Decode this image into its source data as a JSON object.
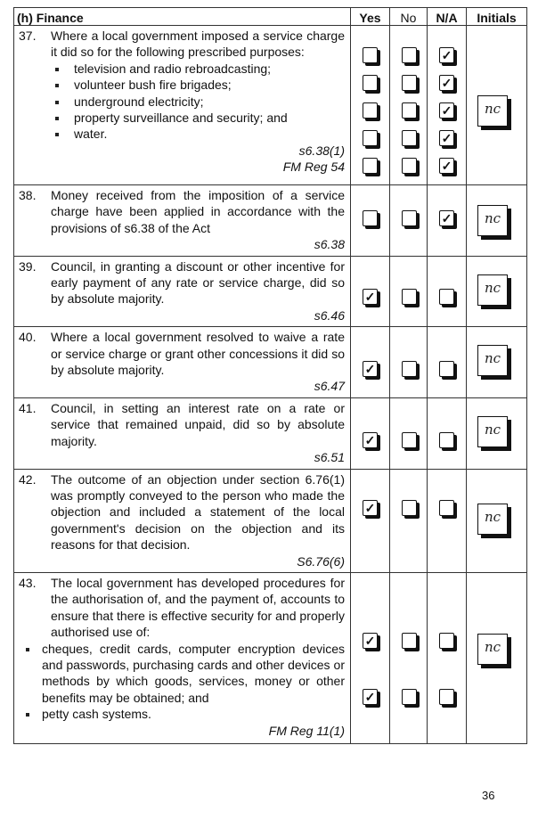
{
  "header": {
    "section": "(h) Finance",
    "yes": "Yes",
    "no": "No",
    "na": "N/A",
    "initials": "Initials"
  },
  "rows": [
    {
      "number": "37.",
      "text": "Where a local government imposed a service charge it did so for the following prescribed purposes:",
      "bullets": [
        "television and radio rebroadcasting;",
        "volunteer bush fire brigades;",
        "underground electricity;",
        "property surveillance and security; and",
        "water."
      ],
      "refs": [
        "s6.38(1)",
        "FM Reg 54"
      ],
      "answers": [
        "N/A",
        "N/A",
        "N/A",
        "N/A",
        "N/A"
      ],
      "initials": "nc"
    },
    {
      "number": "38.",
      "text": "Money received from the imposition of a service charge have been applied in accordance with the provisions of s6.38 of the Act",
      "refs": [
        "s6.38"
      ],
      "answers": [
        "N/A"
      ],
      "initials": "nc"
    },
    {
      "number": "39.",
      "text": "Council, in granting a discount or other incentive for early payment of any rate or service charge, did so by absolute majority.",
      "refs": [
        "s6.46"
      ],
      "answers": [
        "Yes"
      ],
      "initials": "nc"
    },
    {
      "number": "40.",
      "text": "Where a local government resolved to waive a rate or service charge or grant other concessions it did so by absolute majority.",
      "refs": [
        "s6.47"
      ],
      "answers": [
        "Yes"
      ],
      "initials": "nc"
    },
    {
      "number": "41.",
      "text": "Council, in setting an interest rate on a rate or service that remained unpaid, did so by absolute majority.",
      "refs": [
        "s6.51"
      ],
      "answers": [
        "Yes"
      ],
      "initials": "nc"
    },
    {
      "number": "42.",
      "text": "The outcome of an objection under section 6.76(1) was promptly conveyed to the person who made the objection and included a statement of the local government's decision on the objection and its reasons for that decision.",
      "refs": [
        "S6.76(6)"
      ],
      "answers": [
        "Yes"
      ],
      "initials": "nc"
    },
    {
      "number": "43.",
      "text": "The local government has developed procedures for the authorisation of, and the payment of, accounts to ensure that there is effective security for and properly authorised use of:",
      "bullets": [
        "cheques, credit cards, computer encryption devices and passwords, purchasing cards and other devices or methods by which goods, services, money or other benefits may be obtained; and",
        "petty cash systems."
      ],
      "refs": [
        "FM Reg 11(1)"
      ],
      "answers": [
        "Yes",
        "Yes"
      ],
      "initials": "nc"
    }
  ],
  "check_mark": "✓",
  "page_number": "36"
}
